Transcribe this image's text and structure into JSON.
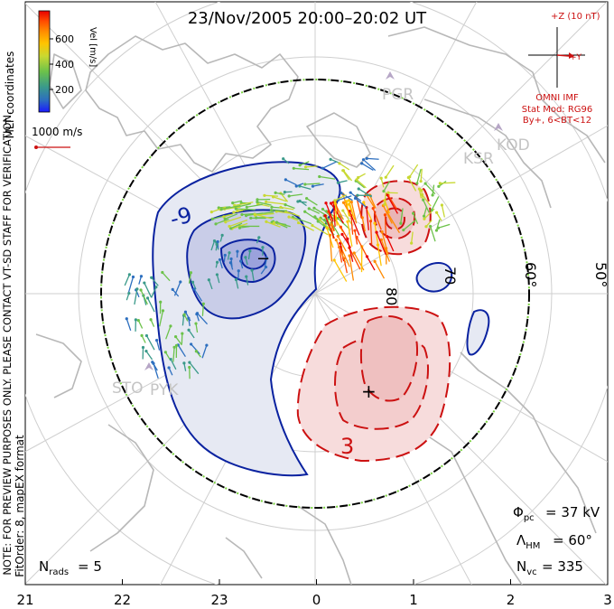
{
  "title": "23/Nov/2005 20:00–20:02 UT",
  "colorbar": {
    "label": "Vel [m/s]",
    "ticks": [
      "600",
      "400",
      "200"
    ],
    "colors": [
      "#1a1aff",
      "#2d6fbf",
      "#3a9a8a",
      "#6cc24a",
      "#c8d832",
      "#ffc400",
      "#ff8a00",
      "#ff4a00",
      "#e80000"
    ]
  },
  "coord_label": "MLT coordinates",
  "ref_vector": "1000 m/s",
  "note_left": "NOTE: FOR PREVIEW PURPOSES ONLY. PLEASE CONTACT VT-SD STAFF FOR VERIFICATION.",
  "fit_order": "FitOrder: 8, mapEX format",
  "imf": {
    "z_label": "+Z (10 nT)",
    "y_label": "+Y",
    "source": "OMNI IMF",
    "stat_mod": "Stat Mod: RG96",
    "condition": "By+, 6<BT<12"
  },
  "stations": [
    "PGR",
    "KOD",
    "KSR",
    "STO",
    "PYK"
  ],
  "contours": {
    "negative_label": "-9",
    "positive_label": "3",
    "min_marker": "−",
    "max_marker": "+"
  },
  "lat_labels": [
    "80",
    "70",
    "60°",
    "50°"
  ],
  "stats": {
    "phi_pc": "= 37 kV",
    "lambda_hm": "= 60°",
    "n_vc": "= 335",
    "n_rads": "= 5"
  },
  "chart_data": {
    "type": "polar-convection-map",
    "x_axis_label": "MLT",
    "x_ticks": [
      "21",
      "22",
      "23",
      "0",
      "1",
      "2",
      "3"
    ],
    "latitude_circles": [
      80,
      70,
      60,
      50
    ],
    "cross_polar_cap_potential_kV": 37,
    "heppner_maynard_boundary_deg": 60,
    "vector_count": 335,
    "radar_count": 5,
    "velocity_scale_m_s": [
      0,
      700
    ],
    "contour_levels_kV": [
      -9,
      3
    ]
  }
}
